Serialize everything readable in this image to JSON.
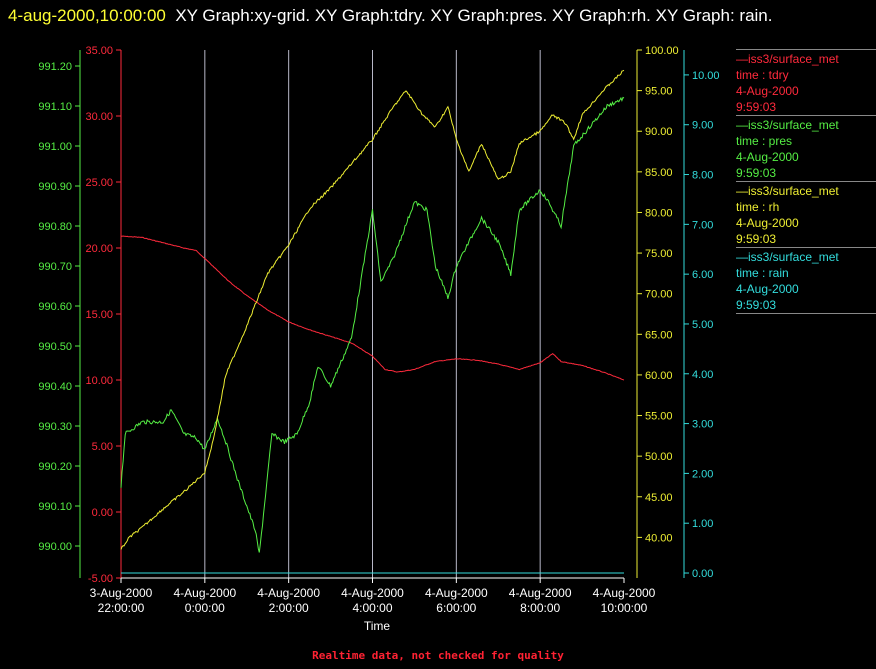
{
  "title": {
    "timestamp": "4-aug-2000,10:00:00",
    "text": "XY Graph:xy-grid.  XY Graph:tdry.  XY Graph:pres.  XY Graph:rh.  XY Graph: rain."
  },
  "legend": [
    {
      "line": "—iss3/surface_met",
      "var": "time : tdry",
      "date": "4-Aug-2000",
      "time": "9:59:03",
      "color": "#ff2a3c"
    },
    {
      "line": "—iss3/surface_met",
      "var": "time : pres",
      "date": "4-Aug-2000",
      "time": "9:59:03",
      "color": "#55ee44"
    },
    {
      "line": "—iss3/surface_met",
      "var": "time : rh",
      "date": "4-Aug-2000",
      "time": "9:59:03",
      "color": "#eeee33"
    },
    {
      "line": "—iss3/surface_met",
      "var": "time : rain",
      "date": "4-Aug-2000",
      "time": "9:59:03",
      "color": "#33dddd"
    }
  ],
  "footer": "Realtime data, not checked for quality",
  "chart_data": {
    "type": "line",
    "xlabel": "Time",
    "x_range_hours": [
      -2,
      10
    ],
    "x_ticks": [
      {
        "hour": -2,
        "line1": "3-Aug-2000",
        "line2": "22:00:00"
      },
      {
        "hour": 0,
        "line1": "4-Aug-2000",
        "line2": "0:00:00"
      },
      {
        "hour": 2,
        "line1": "4-Aug-2000",
        "line2": "2:00:00"
      },
      {
        "hour": 4,
        "line1": "4-Aug-2000",
        "line2": "4:00:00"
      },
      {
        "hour": 6,
        "line1": "4-Aug-2000",
        "line2": "6:00:00"
      },
      {
        "hour": 8,
        "line1": "4-Aug-2000",
        "line2": "8:00:00"
      },
      {
        "hour": 10,
        "line1": "4-Aug-2000",
        "line2": "10:00:00"
      }
    ],
    "grid": "vertical",
    "axes": [
      {
        "id": "pres",
        "side": "left-outer",
        "color": "#55ee44",
        "range": [
          989.92,
          991.24
        ],
        "ticks": [
          "990.00",
          "990.10",
          "990.20",
          "990.30",
          "990.40",
          "990.50",
          "990.60",
          "990.70",
          "990.80",
          "990.90",
          "991.00",
          "991.10",
          "991.20"
        ]
      },
      {
        "id": "tdry",
        "side": "left-inner",
        "color": "#ff2a3c",
        "range": [
          -5,
          35
        ],
        "ticks": [
          "-5.00",
          "0.00",
          "5.00",
          "10.00",
          "15.00",
          "20.00",
          "25.00",
          "30.00",
          "35.00"
        ]
      },
      {
        "id": "rh",
        "side": "right-inner",
        "color": "#eeee33",
        "range": [
          35,
          100
        ],
        "ticks": [
          "40.00",
          "45.00",
          "50.00",
          "55.00",
          "60.00",
          "65.00",
          "70.00",
          "75.00",
          "80.00",
          "85.00",
          "90.00",
          "95.00",
          "100.00"
        ]
      },
      {
        "id": "rain",
        "side": "right-outer",
        "color": "#33dddd",
        "range": [
          -0.1,
          10.5
        ],
        "ticks": [
          "0.00",
          "1.00",
          "2.00",
          "3.00",
          "4.00",
          "5.00",
          "6.00",
          "7.00",
          "8.00",
          "9.00",
          "10.00"
        ]
      }
    ],
    "series": [
      {
        "name": "time : tdry",
        "axis": "tdry",
        "color": "#ff2a3c",
        "points": [
          [
            -2.0,
            20.9
          ],
          [
            -1.5,
            20.8
          ],
          [
            -1.0,
            20.4
          ],
          [
            -0.5,
            20.0
          ],
          [
            -0.2,
            19.8
          ],
          [
            0,
            19.2
          ],
          [
            0.3,
            18.3
          ],
          [
            0.6,
            17.4
          ],
          [
            1.0,
            16.4
          ],
          [
            1.5,
            15.3
          ],
          [
            2.0,
            14.4
          ],
          [
            2.5,
            13.8
          ],
          [
            3.0,
            13.3
          ],
          [
            3.5,
            12.8
          ],
          [
            4.0,
            11.8
          ],
          [
            4.3,
            10.8
          ],
          [
            4.6,
            10.6
          ],
          [
            5.0,
            10.8
          ],
          [
            5.5,
            11.4
          ],
          [
            6.0,
            11.6
          ],
          [
            6.5,
            11.5
          ],
          [
            7.0,
            11.2
          ],
          [
            7.5,
            10.8
          ],
          [
            8.0,
            11.3
          ],
          [
            8.3,
            12.0
          ],
          [
            8.5,
            11.4
          ],
          [
            9.0,
            11.1
          ],
          [
            9.5,
            10.6
          ],
          [
            10.0,
            10.0
          ]
        ]
      },
      {
        "name": "time : pres",
        "axis": "pres",
        "color": "#55ee44",
        "points": [
          [
            -2.0,
            990.15
          ],
          [
            -1.9,
            990.28
          ],
          [
            -1.5,
            990.31
          ],
          [
            -1.0,
            990.31
          ],
          [
            -0.8,
            990.34
          ],
          [
            -0.5,
            990.28
          ],
          [
            -0.2,
            990.27
          ],
          [
            0,
            990.24
          ],
          [
            0.3,
            990.32
          ],
          [
            0.5,
            990.26
          ],
          [
            0.8,
            990.16
          ],
          [
            1.0,
            990.1
          ],
          [
            1.2,
            990.04
          ],
          [
            1.3,
            989.98
          ],
          [
            1.6,
            990.28
          ],
          [
            1.9,
            990.26
          ],
          [
            2.2,
            990.28
          ],
          [
            2.5,
            990.36
          ],
          [
            2.7,
            990.45
          ],
          [
            3.0,
            990.4
          ],
          [
            3.5,
            990.52
          ],
          [
            4.0,
            990.84
          ],
          [
            4.2,
            990.66
          ],
          [
            4.5,
            990.72
          ],
          [
            5.0,
            990.86
          ],
          [
            5.3,
            990.84
          ],
          [
            5.5,
            990.7
          ],
          [
            5.8,
            990.62
          ],
          [
            6.0,
            990.7
          ],
          [
            6.3,
            990.76
          ],
          [
            6.6,
            990.82
          ],
          [
            7.0,
            990.76
          ],
          [
            7.3,
            990.68
          ],
          [
            7.5,
            990.84
          ],
          [
            8.0,
            990.89
          ],
          [
            8.2,
            990.86
          ],
          [
            8.5,
            990.8
          ],
          [
            8.8,
            991.0
          ],
          [
            9.2,
            991.05
          ],
          [
            9.6,
            991.1
          ],
          [
            10.0,
            991.12
          ]
        ]
      },
      {
        "name": "time : rh",
        "axis": "rh",
        "color": "#eeee33",
        "points": [
          [
            -2.0,
            38.5
          ],
          [
            -1.8,
            40.0
          ],
          [
            -1.5,
            41.2
          ],
          [
            -1.0,
            43.5
          ],
          [
            -0.5,
            45.6
          ],
          [
            0,
            48.0
          ],
          [
            0.2,
            52.0
          ],
          [
            0.5,
            60.0
          ],
          [
            1.0,
            66.0
          ],
          [
            1.5,
            72.5
          ],
          [
            2.0,
            76.0
          ],
          [
            2.5,
            80.5
          ],
          [
            3.0,
            83.0
          ],
          [
            3.5,
            86.0
          ],
          [
            4.0,
            89.0
          ],
          [
            4.5,
            93.0
          ],
          [
            4.8,
            95.0
          ],
          [
            5.2,
            92.0
          ],
          [
            5.5,
            90.5
          ],
          [
            5.8,
            93.0
          ],
          [
            6.0,
            89.0
          ],
          [
            6.3,
            85.0
          ],
          [
            6.6,
            88.5
          ],
          [
            7.0,
            84.0
          ],
          [
            7.3,
            85.0
          ],
          [
            7.5,
            88.5
          ],
          [
            8.0,
            90.0
          ],
          [
            8.3,
            92.0
          ],
          [
            8.6,
            91.0
          ],
          [
            8.8,
            89.0
          ],
          [
            9.0,
            92.0
          ],
          [
            9.5,
            95.0
          ],
          [
            10.0,
            97.5
          ]
        ]
      },
      {
        "name": "time : rain",
        "axis": "rain",
        "color": "#33dddd",
        "points": [
          [
            -2.0,
            0.0
          ],
          [
            10.0,
            0.0
          ]
        ]
      }
    ]
  }
}
